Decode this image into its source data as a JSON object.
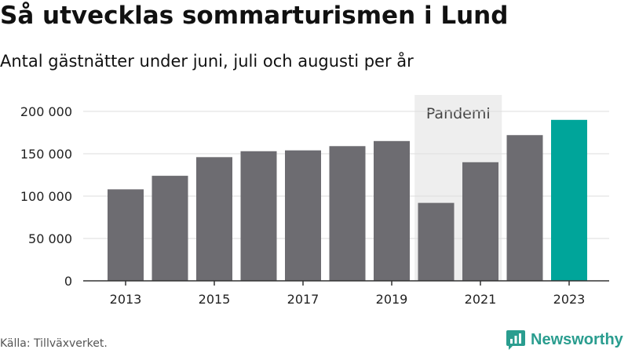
{
  "title": "Så utvecklas sommarturismen i Lund",
  "subtitle": "Antal gästnätter under juni, juli och augusti per år",
  "source": "Källa: Tillväxverket.",
  "brand": {
    "name": "Newsworthy",
    "icon": "newsworthy-logo-icon",
    "color": "#2a9d8f"
  },
  "chart_data": {
    "type": "bar",
    "title": "Så utvecklas sommarturismen i Lund",
    "subtitle": "Antal gästnätter under juni, juli och augusti per år",
    "categories": [
      "2013",
      "2014",
      "2015",
      "2016",
      "2017",
      "2018",
      "2019",
      "2020",
      "2021",
      "2022",
      "2023"
    ],
    "values": [
      108000,
      124000,
      146000,
      153000,
      154000,
      159000,
      165000,
      92000,
      140000,
      172000,
      190000
    ],
    "x_tick_labels": [
      "2013",
      "2015",
      "2017",
      "2019",
      "2021",
      "2023"
    ],
    "ylim": [
      0,
      200000
    ],
    "y_ticks": [
      0,
      50000,
      100000,
      150000,
      200000
    ],
    "y_tick_labels": [
      "0",
      "50 000",
      "100 000",
      "150 000",
      "200 000"
    ],
    "grid": true,
    "legend": "none",
    "highlight_band": {
      "label": "Pandemi",
      "from": "2020",
      "to": "2021",
      "color": "#eeeeee"
    },
    "colors": {
      "bar": "#6d6c71",
      "highlight": "#00a59a",
      "grid": "#dddddd",
      "axis": "#333333"
    },
    "highlight_category": "2023"
  }
}
